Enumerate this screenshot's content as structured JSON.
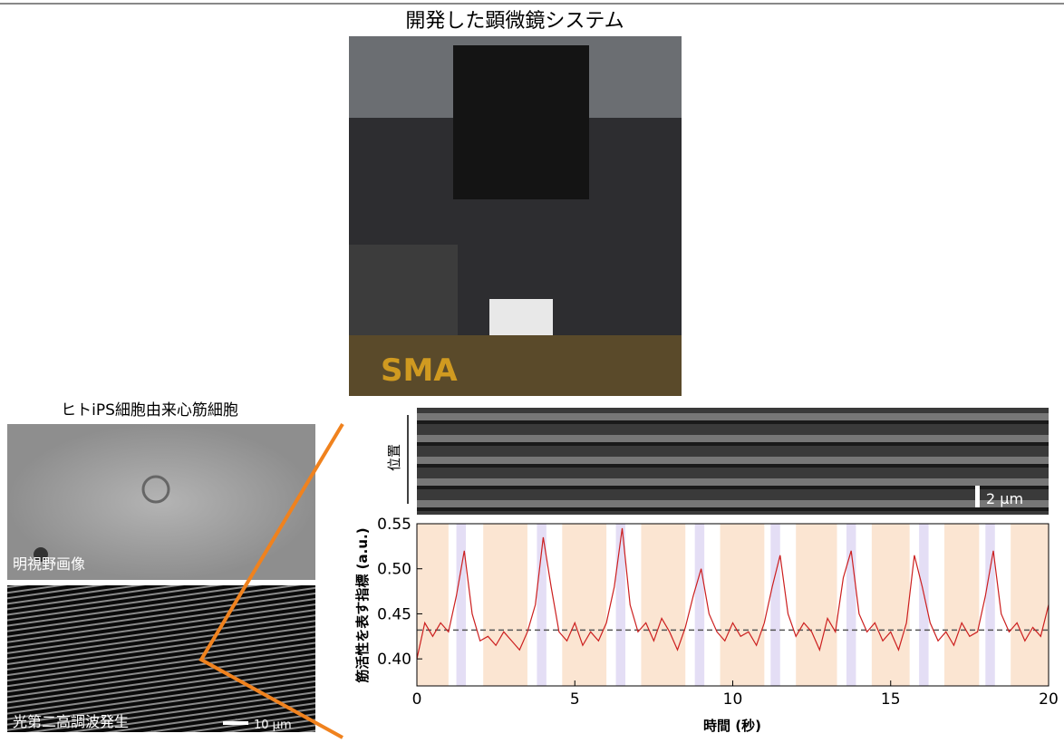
{
  "figure": {
    "photo_title": "開発した顕微鏡システム",
    "cell_title": "ヒトiPS細胞由来心筋細胞",
    "brightfield_label": "明視野画像",
    "shg_label": "光第二高調波発生",
    "shg_scale": "10 μm",
    "kymo_ylabel": "位置",
    "kymo_scale": "2 μm"
  },
  "chart_data": {
    "type": "line",
    "xlabel": "時間 (秒)",
    "ylabel": "筋活性を表す指標 (a.u.)",
    "xlim": [
      0,
      20
    ],
    "ylim": [
      0.37,
      0.55
    ],
    "xticks": [
      0,
      5,
      10,
      15,
      20
    ],
    "yticks": [
      {
        "value": 0.4,
        "label": "0.40"
      },
      0.45,
      {
        "value": 0.5,
        "label": "0.50"
      },
      0.55
    ],
    "threshold": 0.432,
    "bands": [
      {
        "start": 0,
        "end": 1.0,
        "color": "#fbe5d2"
      },
      {
        "start": 1.25,
        "end": 1.55,
        "color": "#e4def5"
      },
      {
        "start": 2.1,
        "end": 3.5,
        "color": "#fbe5d2"
      },
      {
        "start": 3.8,
        "end": 4.1,
        "color": "#e4def5"
      },
      {
        "start": 4.6,
        "end": 6.0,
        "color": "#fbe5d2"
      },
      {
        "start": 6.3,
        "end": 6.6,
        "color": "#e4def5"
      },
      {
        "start": 7.1,
        "end": 8.5,
        "color": "#fbe5d2"
      },
      {
        "start": 8.8,
        "end": 9.1,
        "color": "#e4def5"
      },
      {
        "start": 9.6,
        "end": 11.0,
        "color": "#fbe5d2"
      },
      {
        "start": 11.2,
        "end": 11.5,
        "color": "#e4def5"
      },
      {
        "start": 12.0,
        "end": 13.3,
        "color": "#fbe5d2"
      },
      {
        "start": 13.6,
        "end": 13.9,
        "color": "#e4def5"
      },
      {
        "start": 14.4,
        "end": 15.6,
        "color": "#fbe5d2"
      },
      {
        "start": 15.9,
        "end": 16.2,
        "color": "#e4def5"
      },
      {
        "start": 16.7,
        "end": 17.8,
        "color": "#fbe5d2"
      },
      {
        "start": 18.0,
        "end": 18.3,
        "color": "#e4def5"
      },
      {
        "start": 18.8,
        "end": 20,
        "color": "#fbe5d2"
      }
    ],
    "x": [
      0,
      0.25,
      0.5,
      0.75,
      1,
      1.25,
      1.5,
      1.75,
      2,
      2.25,
      2.5,
      2.75,
      3,
      3.25,
      3.5,
      3.75,
      4,
      4.25,
      4.5,
      4.75,
      5,
      5.25,
      5.5,
      5.75,
      6,
      6.25,
      6.5,
      6.75,
      7,
      7.25,
      7.5,
      7.75,
      8,
      8.25,
      8.5,
      8.75,
      9,
      9.25,
      9.5,
      9.75,
      10,
      10.25,
      10.5,
      10.75,
      11,
      11.25,
      11.5,
      11.75,
      12,
      12.25,
      12.5,
      12.75,
      13,
      13.25,
      13.5,
      13.75,
      14,
      14.25,
      14.5,
      14.75,
      15,
      15.25,
      15.5,
      15.75,
      16,
      16.25,
      16.5,
      16.75,
      17,
      17.25,
      17.5,
      17.75,
      18,
      18.25,
      18.5,
      18.75,
      19,
      19.25,
      19.5,
      19.75,
      20
    ],
    "series": [
      {
        "color": "#cc1f1f",
        "values": [
          0.4,
          0.44,
          0.425,
          0.44,
          0.43,
          0.47,
          0.52,
          0.45,
          0.42,
          0.425,
          0.415,
          0.43,
          0.42,
          0.41,
          0.43,
          0.46,
          0.535,
          0.48,
          0.43,
          0.42,
          0.44,
          0.415,
          0.43,
          0.42,
          0.44,
          0.48,
          0.545,
          0.46,
          0.43,
          0.44,
          0.42,
          0.445,
          0.43,
          0.41,
          0.435,
          0.47,
          0.5,
          0.45,
          0.43,
          0.42,
          0.44,
          0.425,
          0.43,
          0.415,
          0.44,
          0.48,
          0.515,
          0.45,
          0.425,
          0.44,
          0.43,
          0.41,
          0.445,
          0.43,
          0.49,
          0.52,
          0.45,
          0.43,
          0.44,
          0.42,
          0.43,
          0.41,
          0.44,
          0.515,
          0.48,
          0.44,
          0.42,
          0.43,
          0.415,
          0.44,
          0.425,
          0.43,
          0.47,
          0.52,
          0.45,
          0.43,
          0.44,
          0.42,
          0.435,
          0.425,
          0.46
        ]
      }
    ]
  }
}
